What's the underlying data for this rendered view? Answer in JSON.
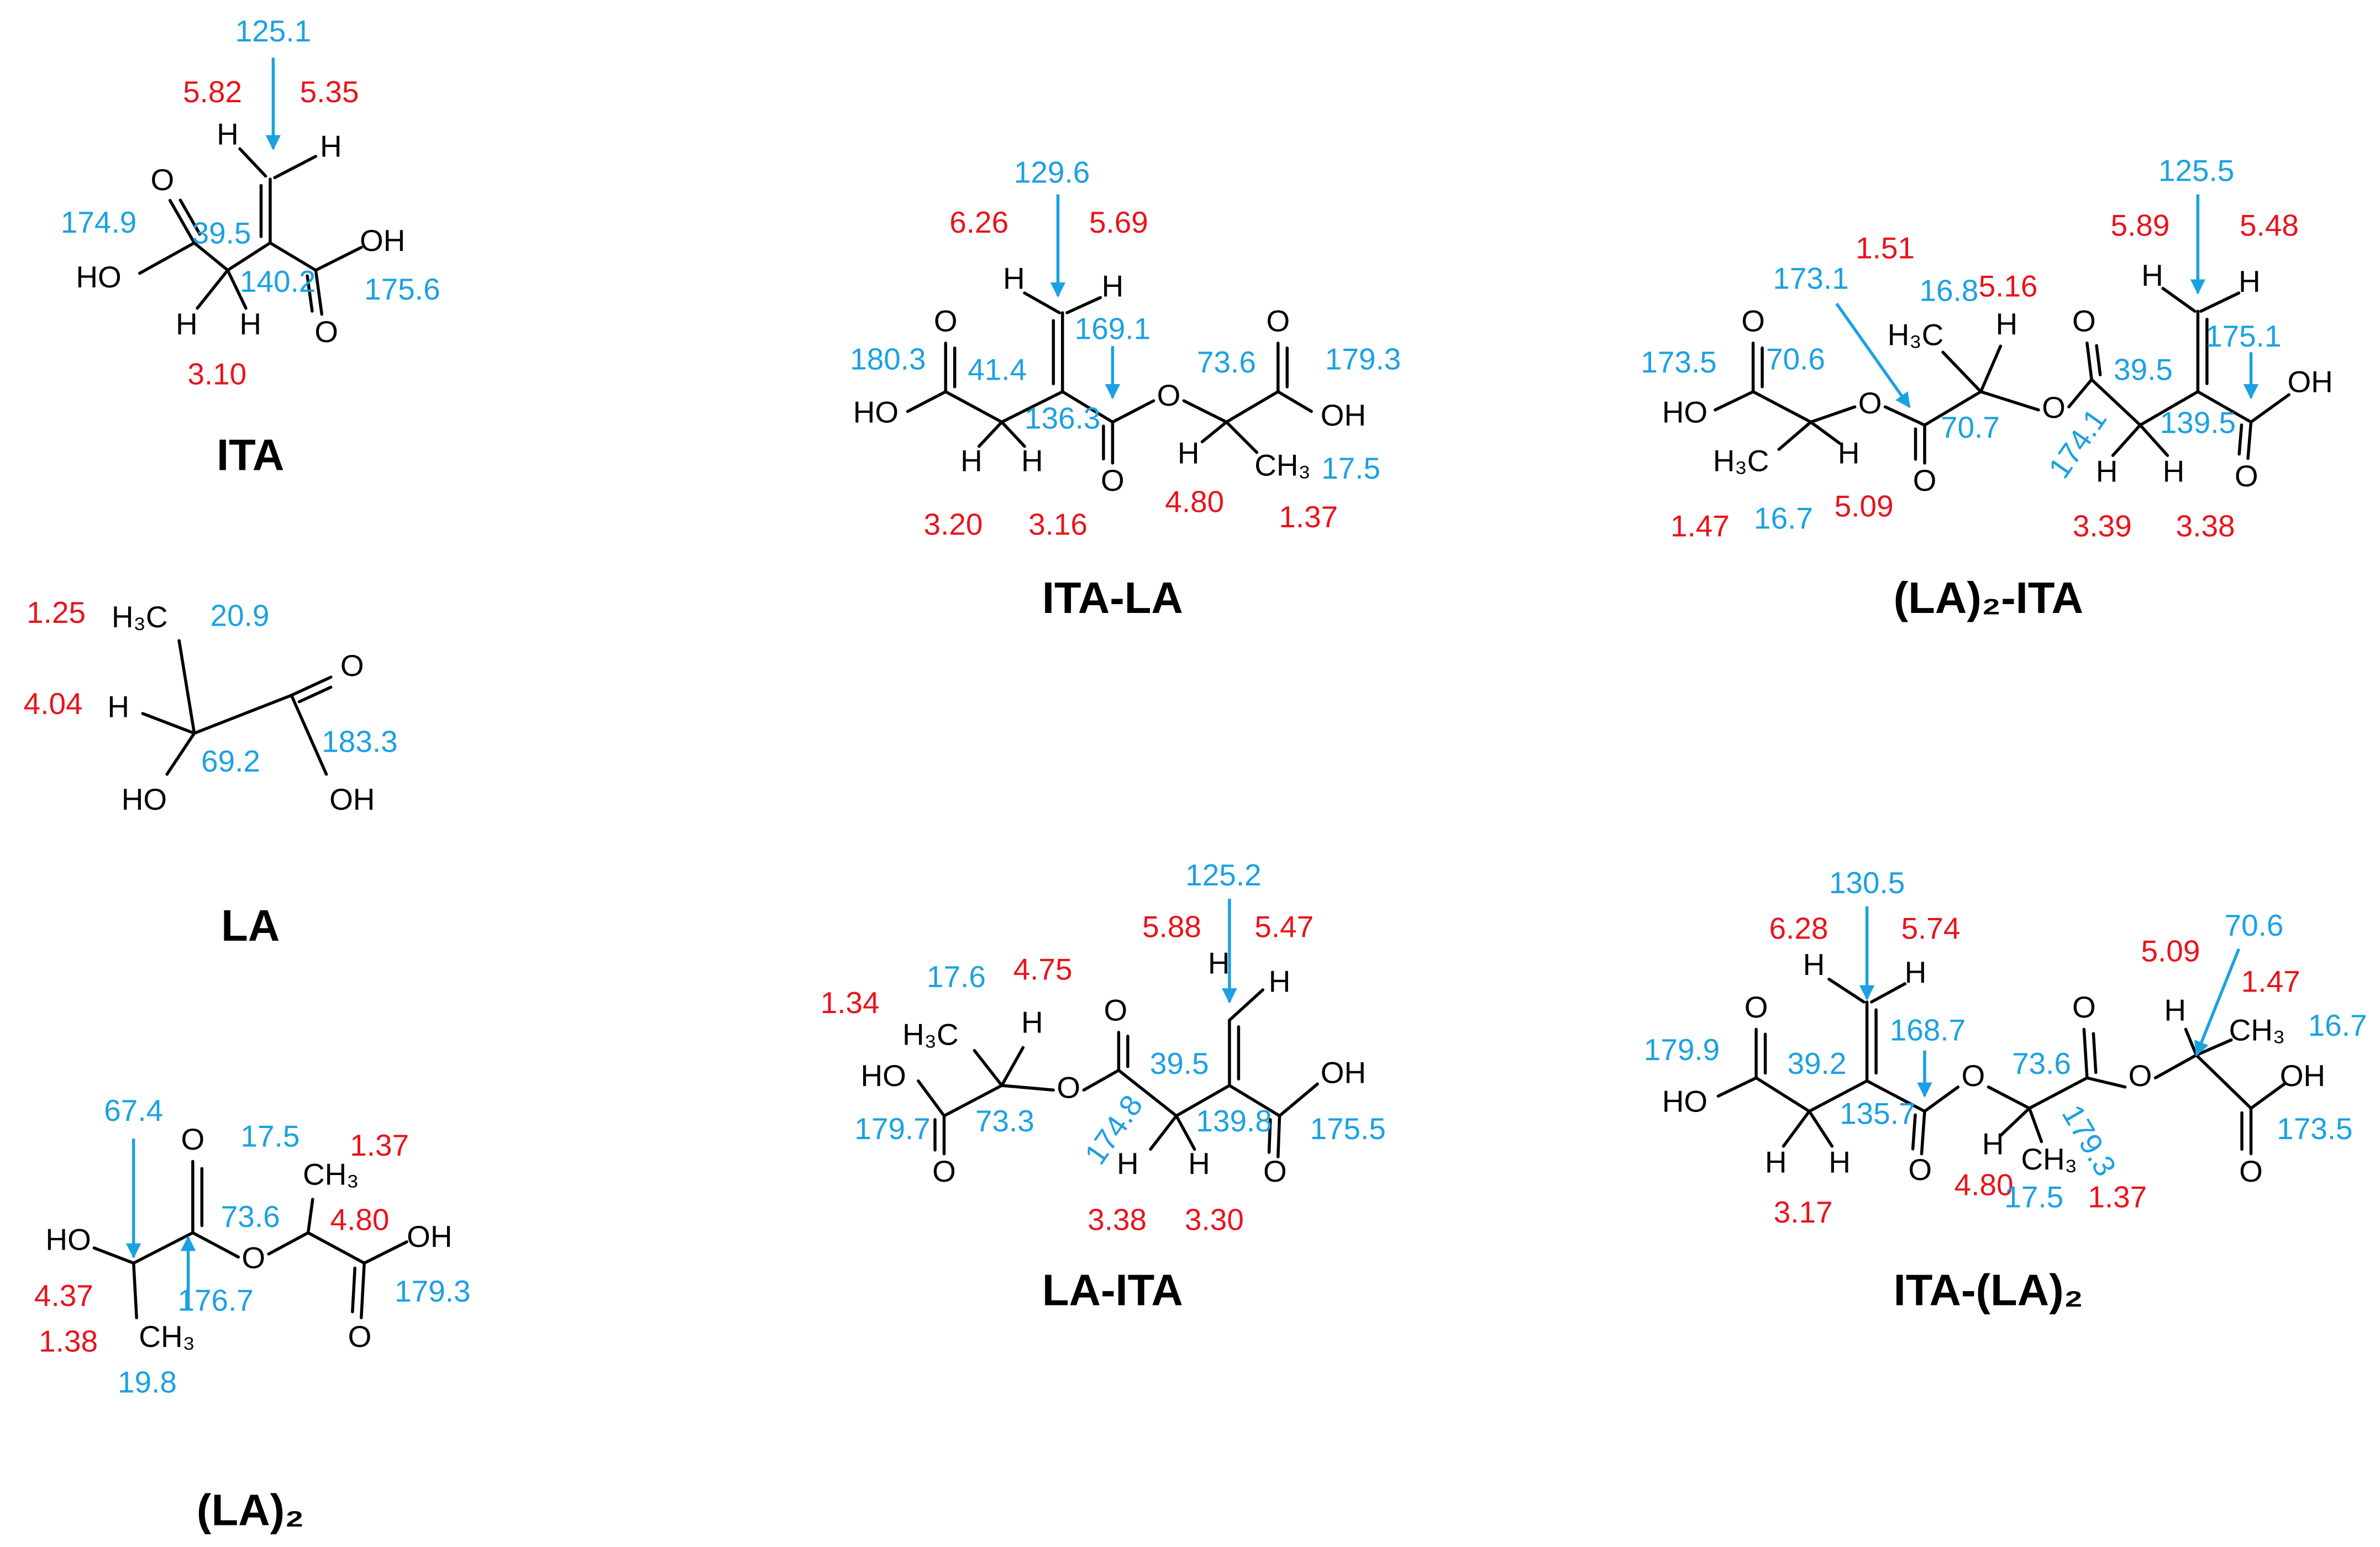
{
  "molecules": [
    {
      "name": "ITA",
      "atoms": [
        "H",
        "H",
        "O",
        "HO",
        "OH",
        "O",
        "H",
        "H"
      ],
      "h_shifts": [
        "5.82",
        "5.35",
        "3.10"
      ],
      "c_shifts": [
        "125.1",
        "174.9",
        "39.5",
        "140.2",
        "175.6"
      ]
    },
    {
      "name": "ITA-LA",
      "atoms": [
        "H",
        "H",
        "O",
        "O",
        "HO",
        "O",
        "OH",
        "H",
        "H",
        "O",
        "H",
        "CH₃"
      ],
      "h_shifts": [
        "6.26",
        "5.69",
        "3.20",
        "3.16",
        "4.80",
        "1.37"
      ],
      "c_shifts": [
        "129.6",
        "169.1",
        "180.3",
        "41.4",
        "73.6",
        "179.3",
        "136.3",
        "17.5"
      ]
    },
    {
      "name": "(LA)₂-ITA",
      "atoms": [
        "H",
        "H",
        "O",
        "H₃C",
        "H",
        "O",
        "OH",
        "HO",
        "O",
        "O",
        "H₃C",
        "H",
        "O",
        "H",
        "H",
        "O"
      ],
      "h_shifts": [
        "1.51",
        "5.89",
        "5.48",
        "5.16",
        "1.47",
        "5.09",
        "3.39",
        "3.38"
      ],
      "c_shifts": [
        "125.5",
        "173.1",
        "16.8",
        "175.1",
        "173.5",
        "70.6",
        "39.5",
        "70.7",
        "139.5",
        "174.1",
        "16.7"
      ]
    },
    {
      "name": "LA",
      "atoms": [
        "H₃C",
        "H",
        "O",
        "HO",
        "OH"
      ],
      "h_shifts": [
        "1.25",
        "4.04"
      ],
      "c_shifts": [
        "20.9",
        "69.2",
        "183.3"
      ]
    },
    {
      "name": "(LA)₂",
      "atoms": [
        "O",
        "CH₃",
        "HO",
        "O",
        "OH",
        "CH₃",
        "O"
      ],
      "h_shifts": [
        "1.37",
        "4.80",
        "4.37",
        "1.38"
      ],
      "c_shifts": [
        "67.4",
        "17.5",
        "73.6",
        "176.7",
        "179.3",
        "19.8"
      ]
    },
    {
      "name": "LA-ITA",
      "atoms": [
        "H",
        "H",
        "H₃C",
        "H",
        "O",
        "HO",
        "OH",
        "O",
        "O",
        "H",
        "H",
        "O"
      ],
      "h_shifts": [
        "5.88",
        "5.47",
        "1.34",
        "4.75",
        "3.38",
        "3.30"
      ],
      "c_shifts": [
        "125.2",
        "17.6",
        "39.5",
        "179.7",
        "73.3",
        "174.8",
        "139.8",
        "175.5"
      ]
    },
    {
      "name": "ITA-(LA)₂",
      "atoms": [
        "H",
        "H",
        "O",
        "O",
        "H",
        "CH₃",
        "O",
        "O",
        "OH",
        "HO",
        "H",
        "H",
        "O",
        "H",
        "CH₃",
        "O"
      ],
      "h_shifts": [
        "6.28",
        "5.74",
        "5.09",
        "1.47",
        "3.17",
        "4.80",
        "1.37"
      ],
      "c_shifts": [
        "130.5",
        "70.6",
        "168.7",
        "16.7",
        "179.9",
        "39.2",
        "73.6",
        "135.7",
        "179.3",
        "173.5",
        "17.5"
      ]
    }
  ]
}
